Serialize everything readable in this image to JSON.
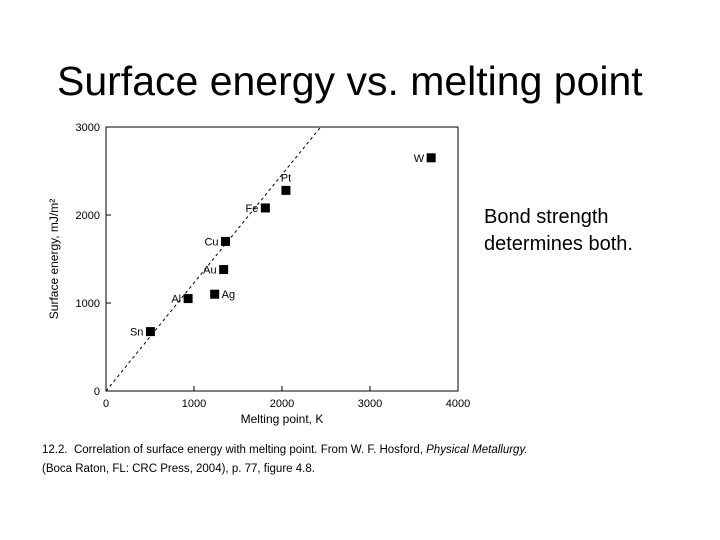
{
  "slide": {
    "title": "Surface energy vs. melting point",
    "note_lines": [
      "Bond strength",
      "determines both."
    ]
  },
  "caption": {
    "number": "12.2.",
    "text_before": "Correlation of surface energy with melting point. From W. F. Hosford, ",
    "book": "Physical Metallurgy.",
    "line2": "(Boca Raton, FL: CRC Press, 2004), p. 77, figure 4.8."
  },
  "chart_data": {
    "type": "scatter",
    "xlabel": "Melting point, K",
    "ylabel": "Surface energy, mJ/m²",
    "xlim": [
      0,
      4000
    ],
    "ylim": [
      0,
      3000
    ],
    "xticks": [
      0,
      1000,
      2000,
      3000,
      4000
    ],
    "yticks": [
      0,
      1000,
      2000,
      3000
    ],
    "grid": false,
    "points": [
      {
        "label": "Sn",
        "x": 505,
        "y": 675,
        "label_side": "left"
      },
      {
        "label": "Al",
        "x": 933,
        "y": 1050,
        "label_side": "left"
      },
      {
        "label": "Ag",
        "x": 1235,
        "y": 1100,
        "label_side": "right"
      },
      {
        "label": "Au",
        "x": 1337,
        "y": 1380,
        "label_side": "left"
      },
      {
        "label": "Cu",
        "x": 1358,
        "y": 1700,
        "label_side": "left"
      },
      {
        "label": "Fe",
        "x": 1811,
        "y": 2080,
        "label_side": "left"
      },
      {
        "label": "Pt",
        "x": 2045,
        "y": 2280,
        "label_side": "above"
      },
      {
        "label": "W",
        "x": 3695,
        "y": 2650,
        "label_side": "left"
      }
    ],
    "trend_line": {
      "style": "dashed",
      "from": [
        0,
        0
      ],
      "to": [
        2440,
        3000
      ]
    },
    "colors": {
      "marker": "#000000",
      "axis": "#000000"
    }
  }
}
